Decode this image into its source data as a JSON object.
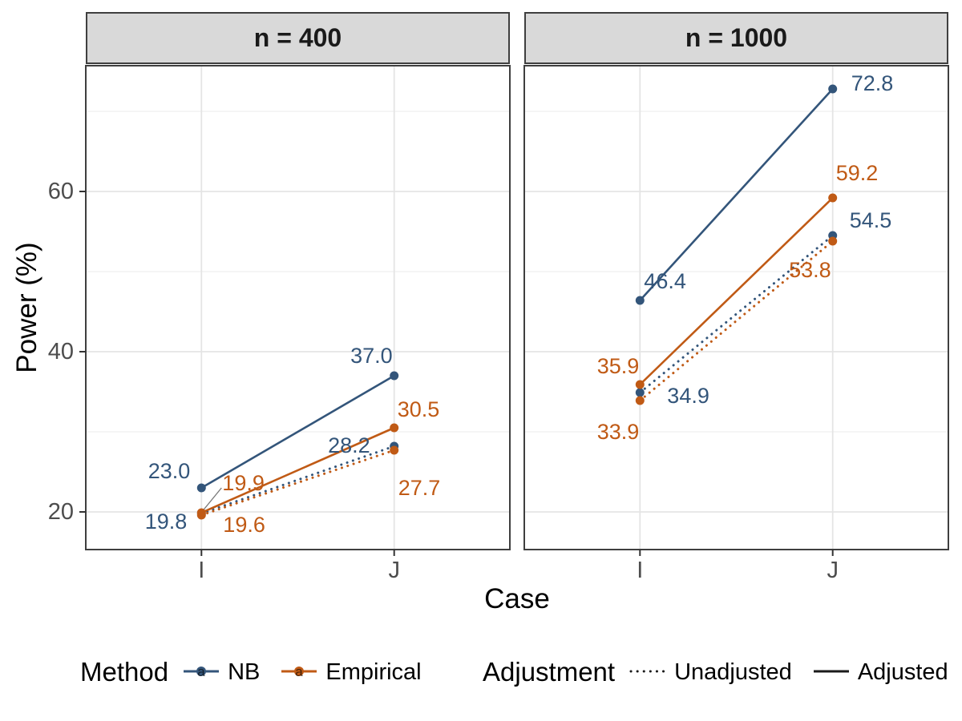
{
  "chart_data": {
    "type": "line",
    "title": "",
    "facet_variable": "n",
    "categories": [
      "I",
      "J"
    ],
    "xlabel": "Case",
    "ylabel": "Power (%)",
    "ylim": [
      15.3,
      75.7
    ],
    "y_major_ticks": [
      20,
      40,
      60
    ],
    "y_minor_gridlines": [
      30,
      50,
      70
    ],
    "grid": true,
    "legend_position": "bottom",
    "facets": [
      {
        "title": "n = 400",
        "series": [
          {
            "method": "NB",
            "adjustment": "Adjusted",
            "line": "solid",
            "color": "#33557A",
            "values": [
              23.0,
              37.0
            ]
          },
          {
            "method": "NB",
            "adjustment": "Unadjusted",
            "line": "dotted",
            "color": "#33557A",
            "values": [
              19.8,
              28.2
            ]
          },
          {
            "method": "Empirical",
            "adjustment": "Adjusted",
            "line": "solid",
            "color": "#C05A15",
            "values": [
              19.9,
              30.5
            ]
          },
          {
            "method": "Empirical",
            "adjustment": "Unadjusted",
            "line": "dotted",
            "color": "#C05A15",
            "values": [
              19.6,
              27.7
            ]
          }
        ]
      },
      {
        "title": "n = 1000",
        "series": [
          {
            "method": "NB",
            "adjustment": "Adjusted",
            "line": "solid",
            "color": "#33557A",
            "values": [
              46.4,
              72.8
            ]
          },
          {
            "method": "NB",
            "adjustment": "Unadjusted",
            "line": "dotted",
            "color": "#33557A",
            "values": [
              34.9,
              54.5
            ]
          },
          {
            "method": "Empirical",
            "adjustment": "Adjusted",
            "line": "solid",
            "color": "#C05A15",
            "values": [
              35.9,
              59.2
            ]
          },
          {
            "method": "Empirical",
            "adjustment": "Unadjusted",
            "line": "dotted",
            "color": "#C05A15",
            "values": [
              33.9,
              53.8
            ]
          }
        ]
      }
    ]
  },
  "axes": {
    "x_label": "Case",
    "y_label": "Power (%)",
    "x_tick_labels": [
      "I",
      "J"
    ],
    "y_tick_labels": [
      "20",
      "40",
      "60"
    ]
  },
  "legend": {
    "method": {
      "title": "Method",
      "glyph_letter": "a",
      "items": [
        {
          "label": "NB",
          "color": "#33557A"
        },
        {
          "label": "Empirical",
          "color": "#C05A15"
        }
      ]
    },
    "adjustment": {
      "title": "Adjustment",
      "items": [
        {
          "label": "Unadjusted",
          "style": "dotted"
        },
        {
          "label": "Adjusted",
          "style": "solid"
        }
      ]
    }
  },
  "colors": {
    "nb_blue": "#33557A",
    "empirical_orange": "#C05A15",
    "strip_fill": "#D9D9D9",
    "panel_border": "#3F3F3F",
    "grid_major": "#E4E4E4",
    "grid_minor": "#EFEFEF",
    "tick_text": "#4D4D4D",
    "leader_line": "#777777"
  }
}
